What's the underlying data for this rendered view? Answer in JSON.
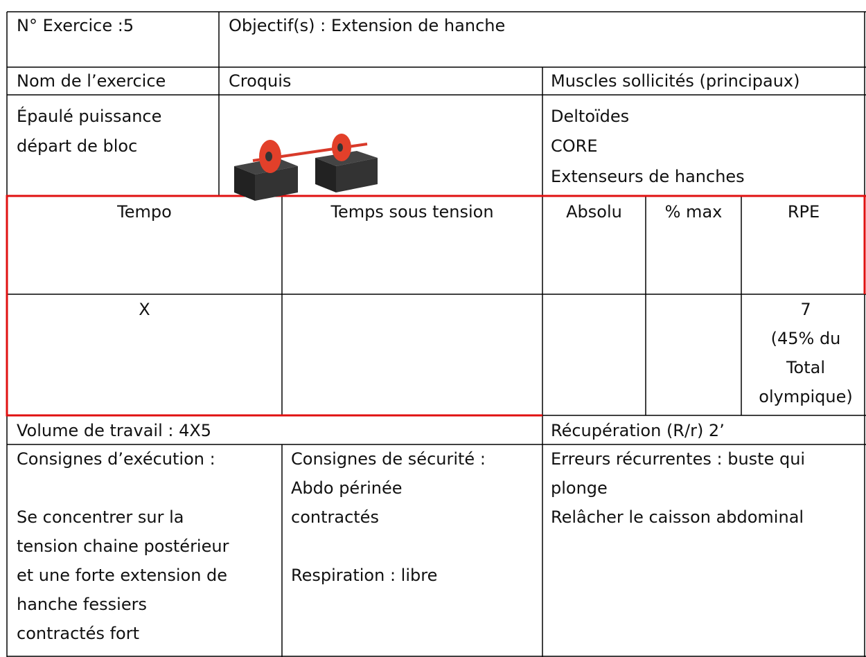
{
  "header": {
    "exercise_number": "N° Exercice :5",
    "objective": "Objectif(s) : Extension de hanche"
  },
  "info": {
    "headers": [
      "Nom de l’exercice",
      "Croquis",
      "Muscles sollicités (principaux)"
    ],
    "exercise_name": [
      "Épaulé puissance",
      "départ de bloc"
    ],
    "muscles": [
      "Deltoïdes",
      "CORE",
      "Extenseurs de hanches"
    ]
  },
  "load": {
    "headers": [
      "Tempo",
      "Temps sous tension",
      "Absolu",
      "% max",
      "RPE"
    ],
    "tempo": "X",
    "rpe": [
      "7",
      "(45% du",
      "Total",
      "olympique)"
    ]
  },
  "volume": "Volume de travail : 4X5",
  "recovery": "Récupération (R/r) 2’",
  "execution": {
    "title": "Consignes d’exécution :",
    "lines": [
      "Se concentrer sur la",
      "tension chaine postérieur",
      "et une forte extension de",
      "hanche fessiers",
      "contractés fort"
    ]
  },
  "safety": {
    "title": "Consignes de sécurité :",
    "lines": [
      "Abdo périnée",
      "contractés"
    ],
    "breathing": "Respiration : libre"
  },
  "errors": {
    "lines": [
      "Erreurs récurrentes : buste qui",
      "plonge",
      "Relâcher le caisson abdominal"
    ]
  }
}
